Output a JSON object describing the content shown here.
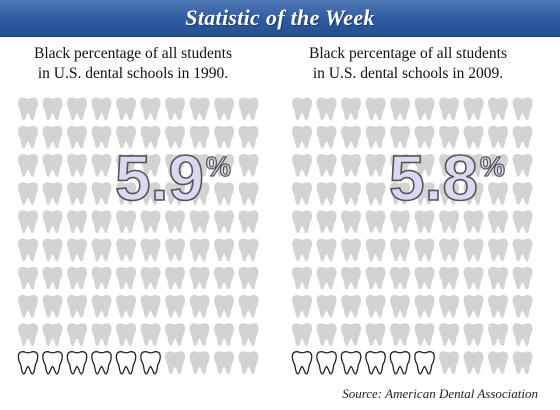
{
  "header": {
    "title": "Statistic of the Week"
  },
  "chart_data": [
    {
      "type": "pictograph",
      "caption_line1": "Black percentage of all students",
      "caption_line2": "in U.S. dental schools in 1990.",
      "value": 5.9,
      "value_text": "5.9",
      "unit": "%",
      "icon": "tooth-icon",
      "highlighted_icons": 6
    },
    {
      "type": "pictograph",
      "caption_line1": "Black percentage of all students",
      "caption_line2": "in U.S. dental schools in 2009.",
      "value": 5.8,
      "value_text": "5.8",
      "unit": "%",
      "icon": "tooth-icon",
      "highlighted_icons": 6
    }
  ],
  "colors": {
    "header": "#2f5aa0",
    "tooth_gray": "#d3d3d3",
    "tooth_highlight": "#ffffff",
    "tooth_outline": "#222222",
    "number_fill": "#d9d9f2",
    "number_stroke": "#555555"
  },
  "source": "Source: American Dental Association"
}
